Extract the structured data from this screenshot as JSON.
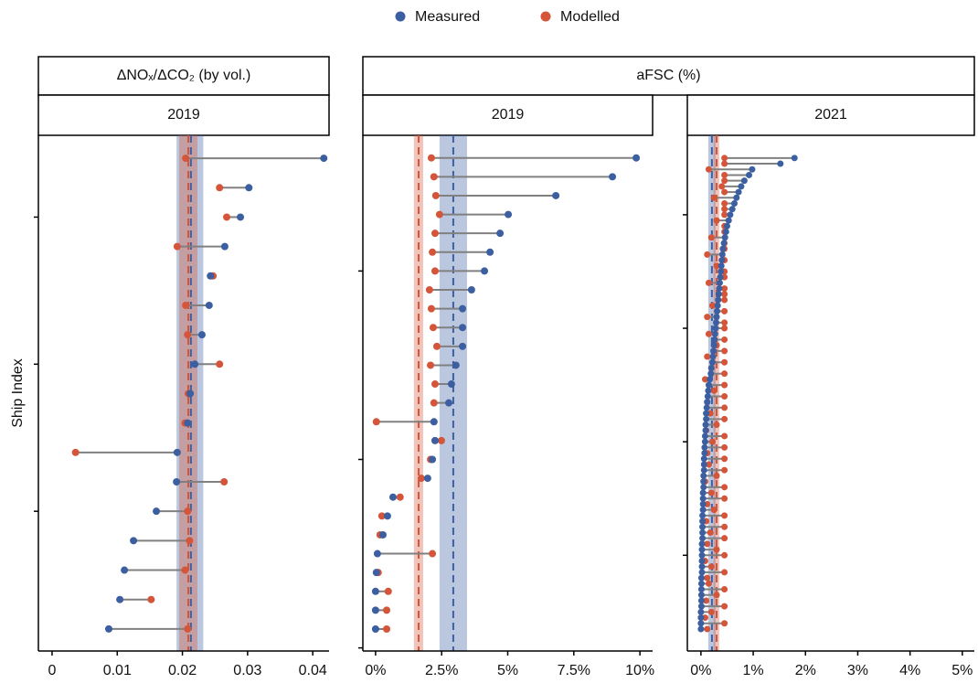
{
  "chart_data": [
    {
      "type": "dumbbell",
      "group": "ΔNOₓ/ΔCO₂ (by vol.)",
      "title": "2019",
      "ylabel": "Ship Index",
      "xlim": [
        -0.0021,
        0.0425
      ],
      "xticks": [
        0,
        0.01,
        0.02,
        0.03,
        0.04
      ],
      "ylim": [
        0.25,
        17.78
      ],
      "yticks": [
        5,
        10,
        15
      ],
      "series": [
        {
          "name": "Measured",
          "color": "#3b5fa0",
          "mean": 0.0213,
          "ci": [
            0.0191,
            0.0232
          ],
          "values": [
            0.0087,
            0.0104,
            0.0111,
            0.0125,
            0.016,
            0.0191,
            0.0192,
            0.0208,
            0.0212,
            0.0219,
            0.023,
            0.0241,
            0.0243,
            0.0265,
            0.0289,
            0.0302,
            0.0417
          ]
        },
        {
          "name": "Modelled",
          "color": "#d4553a",
          "mean": 0.0209,
          "ci": [
            0.0195,
            0.0223
          ],
          "values": [
            0.0208,
            0.0152,
            0.0204,
            0.0211,
            0.0208,
            0.0264,
            0.0036,
            0.0204,
            0.0209,
            0.0257,
            0.0208,
            0.0205,
            0.0247,
            0.0192,
            0.0268,
            0.0257,
            0.0205
          ]
        }
      ]
    },
    {
      "type": "dumbbell",
      "group": "aFSC (%)",
      "title": "2019",
      "xlim": [
        -0.48,
        10.48
      ],
      "xticks": [
        {
          "value": 0,
          "label": "0%"
        },
        {
          "value": 2.5,
          "label": "2.5%"
        },
        {
          "value": 5,
          "label": "5%"
        },
        {
          "value": 7.5,
          "label": "7.5%"
        },
        {
          "value": 10,
          "label": "10%"
        }
      ],
      "ylim": [
        -0.165,
        27.2
      ],
      "yticks": [
        0,
        10,
        20
      ],
      "series": [
        {
          "color": "#3b5fa0",
          "mean": 2.94,
          "ci": [
            2.42,
            3.46
          ],
          "values": [
            0,
            0,
            0,
            0.03,
            0.07,
            0.28,
            0.45,
            0.66,
            1.97,
            2.15,
            2.25,
            2.21,
            2.77,
            2.87,
            3.04,
            3.29,
            3.29,
            3.29,
            3.63,
            4.12,
            4.33,
            4.71,
            5.02,
            6.82,
            8.96,
            9.86
          ]
        },
        {
          "color": "#d4553a",
          "mean": 1.63,
          "ci": [
            1.45,
            1.8
          ],
          "values": [
            0.42,
            0.42,
            0.48,
            0.1,
            2.15,
            0.17,
            0.24,
            0.93,
            1.73,
            2.08,
            2.49,
            0.03,
            2.21,
            2.25,
            2.08,
            2.32,
            2.18,
            2.11,
            2.04,
            2.25,
            2.15,
            2.25,
            2.42,
            2.28,
            2.21,
            2.11
          ]
        }
      ]
    },
    {
      "type": "dumbbell",
      "title": "2021",
      "xlim": [
        -0.26,
        5.23
      ],
      "xticks": [
        {
          "value": 0,
          "label": "0%"
        },
        {
          "value": 1,
          "label": "1%"
        },
        {
          "value": 2,
          "label": "2%"
        },
        {
          "value": 3,
          "label": "3%"
        },
        {
          "value": 4,
          "label": "4%"
        },
        {
          "value": 5,
          "label": "5%"
        }
      ],
      "ylim": [
        -2.87,
        88.0
      ],
      "yticks": [
        14,
        34,
        54,
        74
      ],
      "series": [
        {
          "color": "#3b5fa0",
          "mean": 0.21,
          "ci": [
            0.14,
            0.28
          ],
          "values": [
            0,
            0,
            0,
            0,
            0.01,
            0.01,
            0.01,
            0.01,
            0.01,
            0.01,
            0.02,
            0.02,
            0.02,
            0.02,
            0.02,
            0.02,
            0.03,
            0.03,
            0.03,
            0.03,
            0.03,
            0.04,
            0.04,
            0.04,
            0.04,
            0.05,
            0.05,
            0.05,
            0.06,
            0.06,
            0.06,
            0.07,
            0.07,
            0.08,
            0.08,
            0.09,
            0.09,
            0.1,
            0.1,
            0.11,
            0.12,
            0.13,
            0.14,
            0.15,
            0.17,
            0.19,
            0.2,
            0.22,
            0.23,
            0.24,
            0.25,
            0.26,
            0.27,
            0.28,
            0.29,
            0.3,
            0.31,
            0.32,
            0.33,
            0.34,
            0.35,
            0.36,
            0.37,
            0.38,
            0.39,
            0.4,
            0.41,
            0.42,
            0.44,
            0.46,
            0.48,
            0.5,
            0.53,
            0.56,
            0.6,
            0.64,
            0.68,
            0.72,
            0.77,
            0.83,
            0.92,
            0.98,
            1.52,
            1.79
          ]
        },
        {
          "color": "#d4553a",
          "mean": 0.3,
          "ci": [
            0.24,
            0.35
          ],
          "values": [
            0.12,
            0.45,
            0.08,
            0.2,
            0.45,
            0.1,
            0.3,
            0.45,
            0.15,
            0.12,
            0.45,
            0.2,
            0.08,
            0.45,
            0.3,
            0.12,
            0.45,
            0.18,
            0.45,
            0.1,
            0.45,
            0.25,
            0.12,
            0.45,
            0.2,
            0.45,
            0.08,
            0.3,
            0.45,
            0.15,
            0.45,
            0.12,
            0.45,
            0.22,
            0.45,
            0.1,
            0.3,
            0.45,
            0.18,
            0.45,
            0.12,
            0.45,
            0.25,
            0.45,
            0.08,
            0.45,
            0.2,
            0.45,
            0.12,
            0.45,
            0.3,
            0.45,
            0.15,
            0.45,
            0.45,
            0.12,
            0.45,
            0.22,
            0.45,
            0.45,
            0.45,
            0.15,
            0.45,
            0.45,
            0.3,
            0.45,
            0.12,
            0.45,
            0.45,
            0.2,
            0.45,
            0.45,
            0.3,
            0.45,
            0.45,
            0.45,
            0.25,
            0.45,
            0.4,
            0.45,
            0.45,
            0.15,
            0.45,
            0.45
          ]
        }
      ]
    }
  ]
}
